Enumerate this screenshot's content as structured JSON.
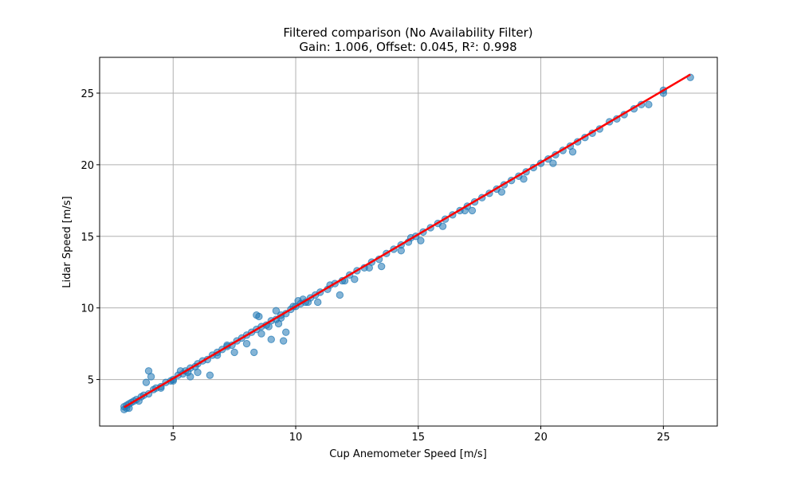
{
  "chart_data": {
    "type": "scatter",
    "title": "Filtered comparison (No Availability Filter)",
    "subtitle": "Gain: 1.006, Offset: 0.045, R²: 0.998",
    "xlabel": "Cup Anemometer Speed [m/s]",
    "ylabel": "Lidar Speed [m/s]",
    "xlim": [
      2.0,
      27.2
    ],
    "ylim": [
      1.75,
      27.5
    ],
    "xticks": [
      5,
      10,
      15,
      20,
      25
    ],
    "yticks": [
      5,
      10,
      15,
      20,
      25
    ],
    "grid": true,
    "legend": "none",
    "colors": {
      "points": "#1f77b4",
      "fit_line": "#ff0000",
      "grid": "#b0b0b0"
    },
    "fit_line": {
      "x": [
        3.0,
        26.1
      ],
      "y": [
        3.063,
        26.3
      ],
      "gain": 1.006,
      "offset": 0.045
    },
    "points": {
      "x": [
        3.0,
        3.1,
        3.2,
        3.3,
        3.5,
        3.7,
        3.8,
        4.0,
        4.2,
        4.3,
        4.5,
        4.7,
        4.9,
        5.0,
        5.2,
        5.4,
        5.5,
        5.7,
        5.9,
        6.0,
        6.2,
        6.4,
        6.6,
        6.8,
        7.0,
        7.2,
        7.4,
        7.6,
        7.8,
        8.0,
        8.2,
        8.4,
        8.6,
        8.8,
        9.0,
        9.2,
        9.4,
        9.6,
        9.8,
        10.0,
        10.2,
        10.4,
        10.6,
        10.8,
        11.0,
        11.3,
        11.6,
        11.9,
        12.2,
        12.5,
        12.8,
        13.1,
        13.4,
        13.7,
        14.0,
        14.3,
        14.6,
        14.9,
        15.2,
        15.5,
        15.8,
        16.1,
        16.4,
        16.7,
        17.0,
        17.3,
        17.6,
        17.9,
        18.2,
        18.5,
        18.8,
        19.1,
        19.4,
        19.7,
        20.0,
        20.3,
        20.6,
        20.9,
        21.2,
        21.5,
        21.8,
        22.1,
        22.4,
        22.8,
        23.1,
        23.4,
        23.8,
        24.1,
        24.4,
        25.0,
        25.0,
        26.1,
        3.9,
        4.0,
        4.1,
        5.7,
        6.0,
        6.5,
        7.5,
        8.0,
        8.3,
        8.4,
        8.5,
        8.6,
        9.0,
        9.2,
        9.3,
        9.5,
        9.6,
        10.1,
        10.3,
        10.9,
        11.8,
        12.4,
        13.5,
        14.3,
        15.1,
        16.0,
        17.2,
        18.4,
        19.3,
        20.5,
        21.3,
        3.1,
        3.4,
        3.6,
        5.3,
        5.6,
        7.2,
        9.9,
        11.4,
        12.0,
        14.7,
        3.0,
        3.2,
        4.5,
        5.0,
        6.8,
        8.9,
        9.4,
        10.5,
        13.0,
        16.9
      ],
      "y": [
        2.9,
        3.2,
        3.3,
        3.4,
        3.6,
        3.8,
        3.9,
        4.0,
        4.3,
        4.4,
        4.5,
        4.8,
        4.9,
        5.0,
        5.3,
        5.4,
        5.6,
        5.8,
        5.9,
        6.1,
        6.3,
        6.4,
        6.7,
        6.9,
        7.1,
        7.3,
        7.4,
        7.7,
        7.9,
        8.1,
        8.3,
        8.5,
        8.7,
        8.8,
        9.1,
        9.2,
        9.5,
        9.6,
        9.9,
        10.1,
        10.3,
        10.4,
        10.7,
        10.9,
        11.1,
        11.3,
        11.7,
        11.9,
        12.3,
        12.6,
        12.8,
        13.2,
        13.4,
        13.8,
        14.1,
        14.4,
        14.6,
        15.0,
        15.3,
        15.6,
        15.9,
        16.2,
        16.5,
        16.8,
        17.1,
        17.4,
        17.7,
        18.0,
        18.3,
        18.6,
        18.9,
        19.2,
        19.5,
        19.8,
        20.1,
        20.4,
        20.7,
        21.0,
        21.3,
        21.6,
        21.9,
        22.2,
        22.5,
        23.0,
        23.2,
        23.5,
        23.9,
        24.2,
        24.2,
        25.0,
        25.2,
        26.1,
        4.8,
        5.6,
        5.2,
        5.2,
        5.5,
        5.3,
        6.9,
        7.5,
        6.9,
        9.5,
        9.4,
        8.2,
        7.8,
        9.8,
        8.9,
        7.7,
        8.3,
        10.5,
        10.6,
        10.4,
        10.9,
        12.0,
        12.9,
        14.0,
        14.7,
        15.7,
        16.8,
        18.1,
        19.0,
        20.1,
        20.9,
        3.0,
        3.5,
        3.5,
        5.6,
        5.5,
        7.4,
        10.1,
        11.6,
        11.9,
        14.9,
        3.1,
        3.0,
        4.4,
        4.9,
        6.7,
        8.7,
        9.3,
        10.4,
        12.8,
        16.8
      ]
    }
  }
}
